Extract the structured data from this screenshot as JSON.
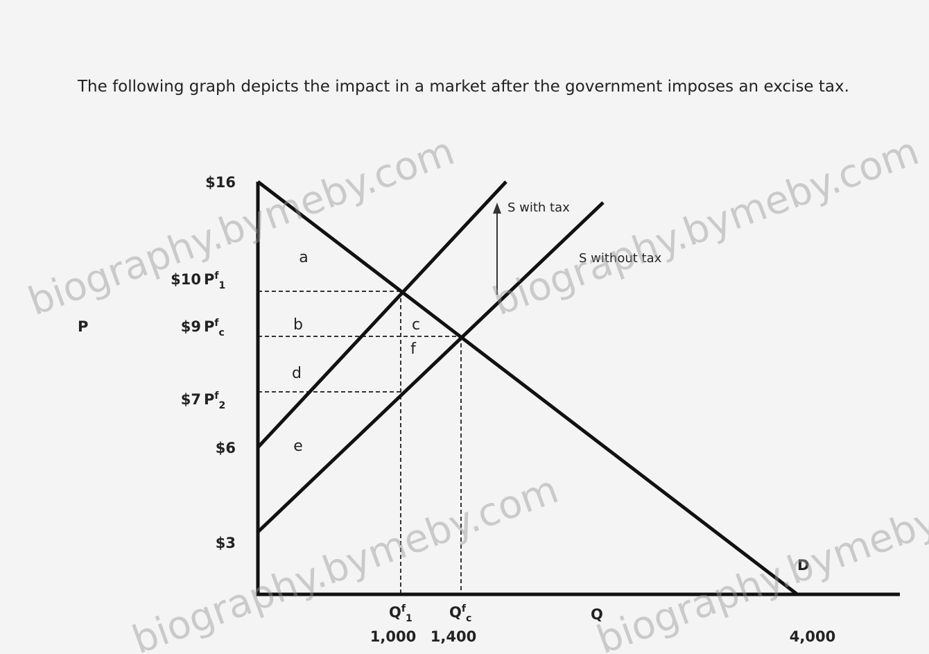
{
  "title": "The following graph depicts the impact in a market after the government imposes an excise tax.",
  "axes": {
    "price": "P",
    "quantity": "Q"
  },
  "prices": [
    {
      "value": "$16"
    },
    {
      "value": "$10",
      "symbol": "P",
      "sup": "f",
      "sub": "1"
    },
    {
      "value": "$9",
      "symbol": "P",
      "sup": "f",
      "sub": "c"
    },
    {
      "value": "$7",
      "symbol": "P",
      "sup": "f",
      "sub": "2"
    },
    {
      "value": "$6"
    },
    {
      "value": "$3"
    }
  ],
  "quantities": [
    {
      "symbol": "Q",
      "sup": "f",
      "sub": "1",
      "value": "1,000"
    },
    {
      "symbol": "Q",
      "sup": "f",
      "sub": "c",
      "value": "1,400"
    },
    {
      "value": "4,000"
    }
  ],
  "curves": {
    "supply_tax": "S with tax",
    "supply": "S without tax",
    "demand": "D"
  },
  "areas": [
    "a",
    "b",
    "c",
    "d",
    "e",
    "f"
  ],
  "watermark": "biography.bymeby.com"
}
